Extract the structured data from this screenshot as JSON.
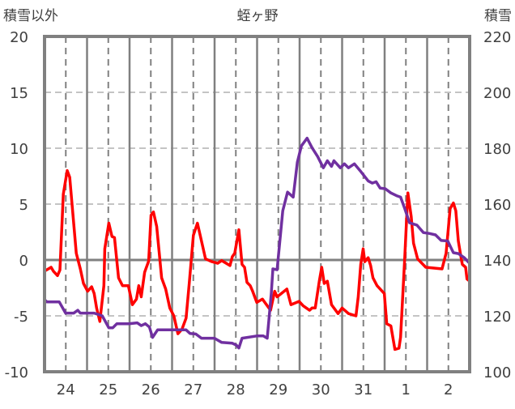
{
  "chart_data": {
    "type": "line",
    "title": "蛭ヶ野",
    "ylabel_left": "積雪以外",
    "ylabel_right": "積雪",
    "xlabel": "",
    "x_unit": "hours since start of day 24",
    "xlim": [
      0,
      240
    ],
    "ylim_left": [
      -10,
      20
    ],
    "ylim_right": [
      100,
      220
    ],
    "yticks_left": [
      "-10",
      "-5",
      "0",
      "5",
      "10",
      "15",
      "20"
    ],
    "yticks_right": [
      "100",
      "120",
      "140",
      "160",
      "180",
      "200",
      "220"
    ],
    "xtick_labels": [
      "24",
      "25",
      "26",
      "27",
      "28",
      "29",
      "30",
      "31",
      "1",
      "2"
    ],
    "grid": true,
    "colors": {
      "red_series": "#ff0000",
      "snow_series": "#7030a0",
      "axis": "#808080"
    },
    "series": [
      {
        "name": "積雪以外",
        "axis": "left",
        "color": "#ff0000",
        "points": [
          [
            0,
            -1.0
          ],
          [
            3.7,
            -0.65
          ],
          [
            5,
            -1.0
          ],
          [
            7.3,
            -1.4
          ],
          [
            8.7,
            -0.9
          ],
          [
            10.6,
            5.9
          ],
          [
            12.8,
            8.0
          ],
          [
            14.2,
            7.4
          ],
          [
            16.5,
            3.2
          ],
          [
            17.9,
            0.6
          ],
          [
            20.2,
            -0.8
          ],
          [
            22,
            -2.1
          ],
          [
            24.3,
            -2.8
          ],
          [
            26.6,
            -2.4
          ],
          [
            28,
            -3.0
          ],
          [
            29.4,
            -4.3
          ],
          [
            31.2,
            -5.5
          ],
          [
            33.5,
            -2.3
          ],
          [
            34,
            1.0
          ],
          [
            36.3,
            3.3
          ],
          [
            38.1,
            2.1
          ],
          [
            39.5,
            2.0
          ],
          [
            41.8,
            -1.6
          ],
          [
            44,
            -2.3
          ],
          [
            47.3,
            -2.3
          ],
          [
            49.6,
            -4.0
          ],
          [
            51.9,
            -3.5
          ],
          [
            53.2,
            -2.3
          ],
          [
            54.6,
            -3.3
          ],
          [
            56.5,
            -1.1
          ],
          [
            58.8,
            -0.1
          ],
          [
            60.1,
            4.0
          ],
          [
            61.5,
            4.3
          ],
          [
            63.3,
            3.0
          ],
          [
            66.1,
            -1.6
          ],
          [
            68.4,
            -2.6
          ],
          [
            70.7,
            -4.3
          ],
          [
            73,
            -5.0
          ],
          [
            75.3,
            -6.6
          ],
          [
            77.6,
            -6.2
          ],
          [
            79.9,
            -5.2
          ],
          [
            81.7,
            -2.1
          ],
          [
            84,
            2.2
          ],
          [
            86.3,
            3.3
          ],
          [
            88.6,
            1.7
          ],
          [
            90.9,
            0.1
          ],
          [
            94.5,
            -0.15
          ],
          [
            97.8,
            -0.3
          ],
          [
            100,
            -0.05
          ],
          [
            104.7,
            -0.5
          ],
          [
            106,
            0.3
          ],
          [
            107.4,
            0.6
          ],
          [
            109.7,
            2.7
          ],
          [
            111.5,
            -0.4
          ],
          [
            112.9,
            -0.65
          ],
          [
            114.3,
            -2.0
          ],
          [
            116.1,
            -2.3
          ],
          [
            117.5,
            -2.8
          ],
          [
            119.8,
            -3.8
          ],
          [
            123,
            -3.5
          ],
          [
            127.6,
            -4.5
          ],
          [
            129.9,
            -2.8
          ],
          [
            131.3,
            -3.3
          ],
          [
            134.5,
            -2.9
          ],
          [
            136.8,
            -2.6
          ],
          [
            139.1,
            -4.0
          ],
          [
            143.7,
            -3.7
          ],
          [
            146,
            -4.1
          ],
          [
            149.6,
            -4.5
          ],
          [
            151,
            -4.3
          ],
          [
            152.8,
            -4.3
          ],
          [
            155.1,
            -1.9
          ],
          [
            156.5,
            -0.65
          ],
          [
            157.9,
            -2.1
          ],
          [
            159.7,
            -1.9
          ],
          [
            162,
            -4.0
          ],
          [
            165.7,
            -4.8
          ],
          [
            168,
            -4.3
          ],
          [
            171.6,
            -4.8
          ],
          [
            175.8,
            -5.0
          ],
          [
            177.1,
            -3.3
          ],
          [
            178.5,
            -0.4
          ],
          [
            179.9,
            1.0
          ],
          [
            180.8,
            -0.15
          ],
          [
            182.7,
            0.2
          ],
          [
            184.1,
            -0.5
          ],
          [
            185.4,
            -1.6
          ],
          [
            187.7,
            -2.3
          ],
          [
            191.8,
            -3.0
          ],
          [
            193.2,
            -5.7
          ],
          [
            195.5,
            -5.9
          ],
          [
            197.8,
            -8.0
          ],
          [
            200.1,
            -7.9
          ],
          [
            201,
            -6.9
          ],
          [
            203.3,
            0
          ],
          [
            205.1,
            6.0
          ],
          [
            207,
            3.9
          ],
          [
            208.3,
            1.5
          ],
          [
            210.6,
            0.1
          ],
          [
            215.2,
            -0.65
          ],
          [
            224.4,
            -0.8
          ],
          [
            226.7,
            0.6
          ],
          [
            229,
            4.6
          ],
          [
            230.8,
            5.1
          ],
          [
            232.2,
            4.4
          ],
          [
            233.6,
            1.7
          ],
          [
            235.4,
            0
          ],
          [
            235.9,
            -0.4
          ],
          [
            237.7,
            -0.65
          ],
          [
            238.5,
            -1.7
          ],
          [
            240,
            -1.9
          ]
        ]
      },
      {
        "name": "積雪",
        "axis": "right",
        "color": "#7030a0",
        "points": [
          [
            0,
            125.8
          ],
          [
            1.4,
            125
          ],
          [
            8.3,
            125
          ],
          [
            11.9,
            121
          ],
          [
            16.5,
            121
          ],
          [
            18.8,
            122
          ],
          [
            20.2,
            121
          ],
          [
            28,
            121
          ],
          [
            32.6,
            120
          ],
          [
            36.3,
            115.7
          ],
          [
            38.5,
            115.7
          ],
          [
            40.8,
            117.2
          ],
          [
            47.7,
            117.2
          ],
          [
            52.3,
            117.5
          ],
          [
            54.6,
            116.5
          ],
          [
            56.9,
            117.2
          ],
          [
            59.2,
            116
          ],
          [
            61,
            112.3
          ],
          [
            63.8,
            115
          ],
          [
            79.9,
            115
          ],
          [
            82.1,
            113.7
          ],
          [
            85.4,
            113.5
          ],
          [
            88.6,
            112
          ],
          [
            95.9,
            112
          ],
          [
            100,
            110.5
          ],
          [
            106,
            110.2
          ],
          [
            108.3,
            109.5
          ],
          [
            109.7,
            108.5
          ],
          [
            111.5,
            112
          ],
          [
            119.8,
            112.8
          ],
          [
            123.5,
            112.8
          ],
          [
            125.7,
            112
          ],
          [
            128,
            127.9
          ],
          [
            128.9,
            136.8
          ],
          [
            131.3,
            136.5
          ],
          [
            134.5,
            157.6
          ],
          [
            137.2,
            164.3
          ],
          [
            140.4,
            162.5
          ],
          [
            142.7,
            175
          ],
          [
            145,
            180.8
          ],
          [
            148.2,
            183.6
          ],
          [
            151,
            180.2
          ],
          [
            154.2,
            177
          ],
          [
            157.4,
            173
          ],
          [
            159.7,
            175.5
          ],
          [
            162,
            173.5
          ],
          [
            163.4,
            175.5
          ],
          [
            167,
            173
          ],
          [
            169.3,
            174.4
          ],
          [
            171.6,
            173
          ],
          [
            174.9,
            174.4
          ],
          [
            178.1,
            172
          ],
          [
            182.7,
            168.3
          ],
          [
            185,
            167.5
          ],
          [
            187.2,
            168
          ],
          [
            189.5,
            165.7
          ],
          [
            192.3,
            165.5
          ],
          [
            195.5,
            164
          ],
          [
            198.7,
            163
          ],
          [
            201,
            162.5
          ],
          [
            203.3,
            158.5
          ],
          [
            206.1,
            153.3
          ],
          [
            210.2,
            152.5
          ],
          [
            213.9,
            149.8
          ],
          [
            217.1,
            149.5
          ],
          [
            220.7,
            149
          ],
          [
            223.9,
            147
          ],
          [
            227.6,
            146.8
          ],
          [
            230.8,
            142.6
          ],
          [
            233.6,
            142.3
          ],
          [
            236.8,
            140.9
          ],
          [
            240,
            138.8
          ]
        ]
      }
    ]
  }
}
